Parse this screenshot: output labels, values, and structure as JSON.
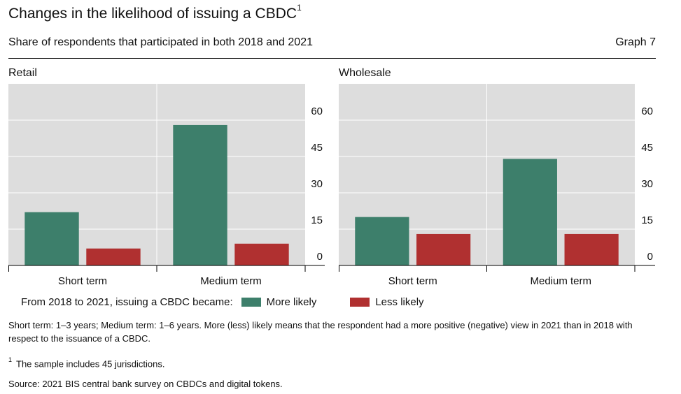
{
  "header": {
    "title": "Changes in the likelihood of issuing a CBDC",
    "title_footnote": "1",
    "subtitle": "Share of respondents that participated in both 2018 and 2021",
    "graph_number": "Graph 7"
  },
  "colors": {
    "more_likely": "#3d7f6b",
    "less_likely": "#b03030",
    "plot_bg": "#dddddd"
  },
  "chart_data": [
    {
      "type": "bar",
      "title": "Retail",
      "categories": [
        "Short term",
        "Medium term"
      ],
      "series": [
        {
          "name": "More likely",
          "values": [
            22,
            58
          ]
        },
        {
          "name": "Less likely",
          "values": [
            7,
            9
          ]
        }
      ],
      "ylim": [
        0,
        75
      ],
      "yticks": [
        0,
        15,
        30,
        45,
        60
      ]
    },
    {
      "type": "bar",
      "title": "Wholesale",
      "categories": [
        "Short term",
        "Medium term"
      ],
      "series": [
        {
          "name": "More likely",
          "values": [
            20,
            44
          ]
        },
        {
          "name": "Less likely",
          "values": [
            13,
            13
          ]
        }
      ],
      "ylim": [
        0,
        75
      ],
      "yticks": [
        0,
        15,
        30,
        45,
        60
      ]
    }
  ],
  "legend": {
    "prefix": "From 2018 to 2021, issuing a CBDC became:",
    "more_likely": "More likely",
    "less_likely": "Less likely"
  },
  "notes": {
    "definition": "Short term: 1–3 years; Medium term: 1–6 years. More (less) likely means that the respondent had a more positive (negative) view in 2021 than in 2018 with respect to the issuance of a CBDC.",
    "footnote_marker": "1",
    "footnote": "The sample includes 45 jurisdictions.",
    "source": "Source: 2021 BIS central bank survey on CBDCs and digital tokens."
  }
}
